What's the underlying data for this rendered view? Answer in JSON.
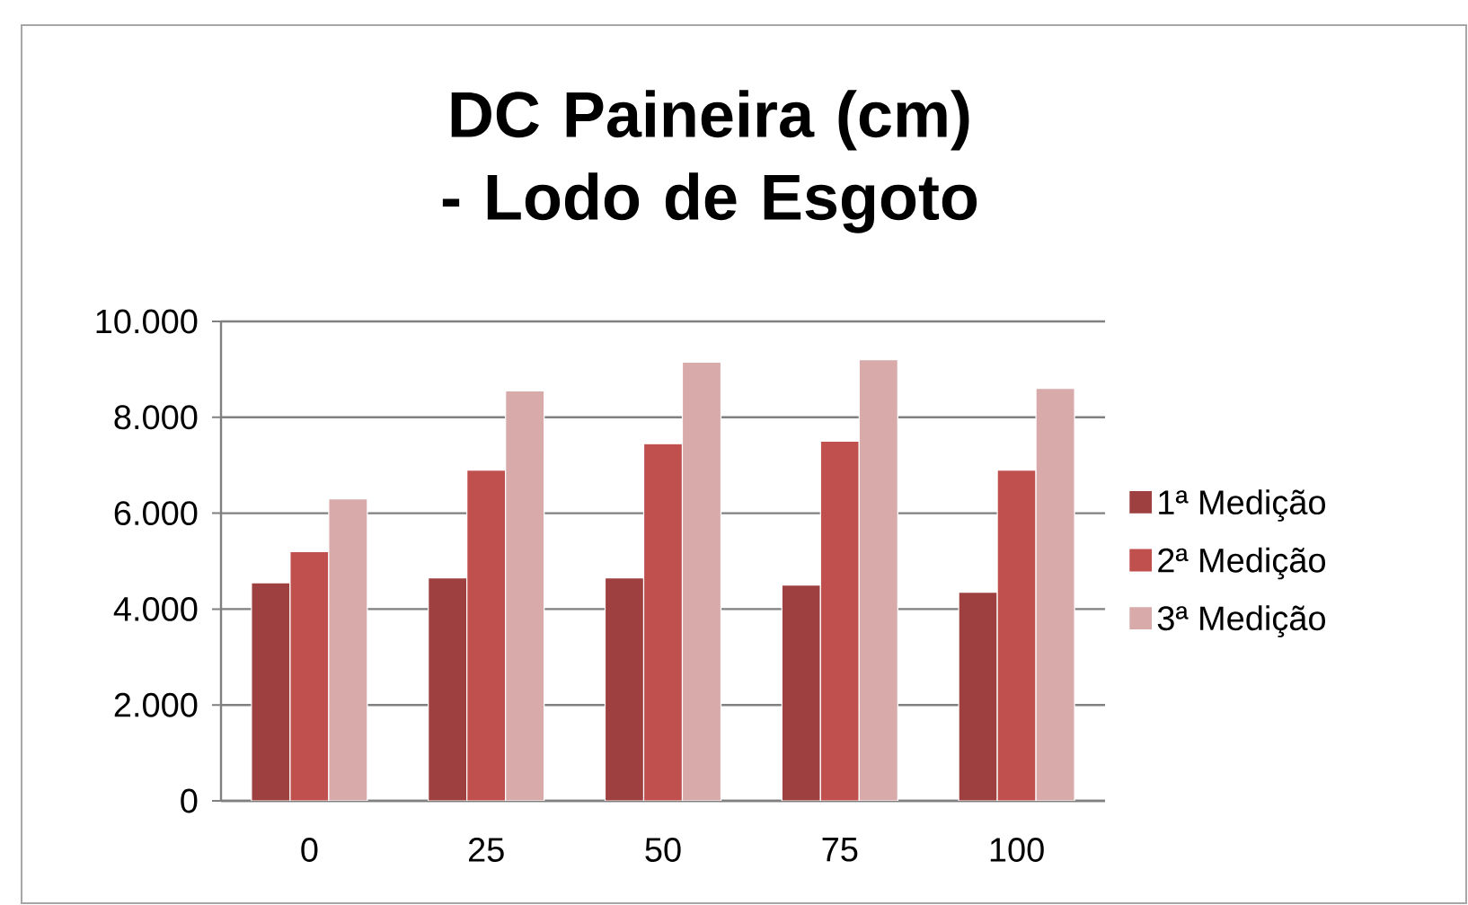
{
  "chart_data": {
    "type": "bar",
    "title": "DC Paineira (cm) -  Lodo de Esgoto",
    "categories": [
      "0",
      "25",
      "50",
      "75",
      "100"
    ],
    "series": [
      {
        "name": "1ª Medição",
        "color": "#9e4040",
        "values": [
          4550,
          4650,
          4650,
          4500,
          4350
        ]
      },
      {
        "name": "2ª Medição",
        "color": "#c0504d",
        "values": [
          5200,
          6900,
          7450,
          7500,
          6900
        ]
      },
      {
        "name": "3ª Medição",
        "color": "#d9aaaa",
        "values": [
          6300,
          8550,
          9150,
          9200,
          8600
        ]
      }
    ],
    "ylim": [
      0,
      10000
    ],
    "yticks": [
      {
        "value": 0,
        "label": "0"
      },
      {
        "value": 2000,
        "label": "2.000"
      },
      {
        "value": 4000,
        "label": "4.000"
      },
      {
        "value": 6000,
        "label": "6.000"
      },
      {
        "value": 8000,
        "label": "8.000"
      },
      {
        "value": 10000,
        "label": "10.000"
      }
    ],
    "grid": "y",
    "legend": "right"
  }
}
